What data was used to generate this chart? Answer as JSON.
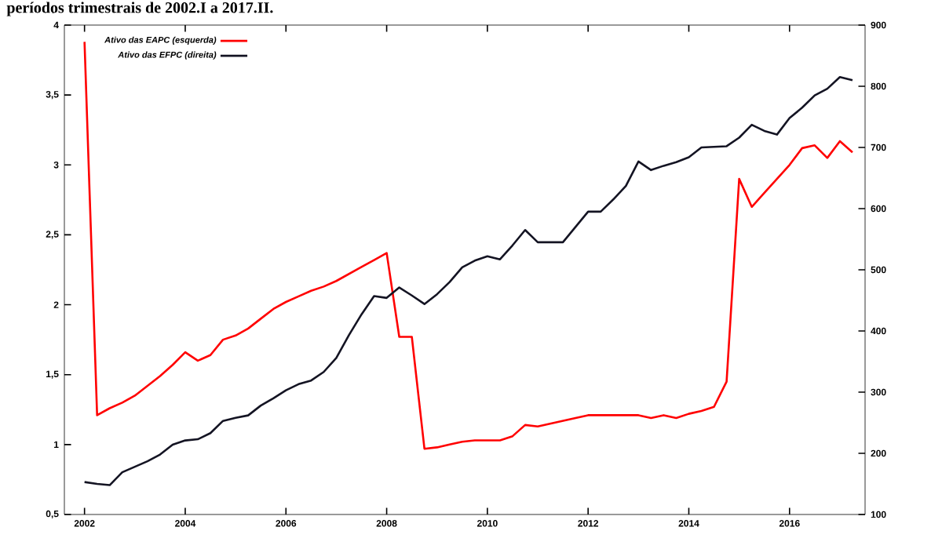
{
  "chart_data": {
    "type": "line",
    "title": "períodos trimestrais de 2002.I a 2017.II.",
    "x": [
      2002,
      2002.25,
      2002.5,
      2002.75,
      2003,
      2003.25,
      2003.5,
      2003.75,
      2004,
      2004.25,
      2004.5,
      2004.75,
      2005,
      2005.25,
      2005.5,
      2005.75,
      2006,
      2006.25,
      2006.5,
      2006.75,
      2007,
      2007.25,
      2007.5,
      2007.75,
      2008,
      2008.25,
      2008.5,
      2008.75,
      2009,
      2009.25,
      2009.5,
      2009.75,
      2010,
      2010.25,
      2010.5,
      2010.75,
      2011,
      2011.25,
      2011.5,
      2011.75,
      2012,
      2012.25,
      2012.5,
      2012.75,
      2013,
      2013.25,
      2013.5,
      2013.75,
      2014,
      2014.25,
      2014.5,
      2014.75,
      2015,
      2015.25,
      2015.5,
      2015.75,
      2016,
      2016.25,
      2016.5,
      2016.75,
      2017,
      2017.25
    ],
    "series": [
      {
        "name": "Ativo das EAPC (esquerda)",
        "color": "#ff0000",
        "axis": "y",
        "values": [
          3.88,
          1.21,
          1.26,
          1.3,
          1.35,
          1.42,
          1.49,
          1.57,
          1.66,
          1.6,
          1.64,
          1.75,
          1.78,
          1.83,
          1.9,
          1.97,
          2.02,
          2.06,
          2.1,
          2.13,
          2.17,
          2.22,
          2.27,
          2.32,
          2.37,
          1.77,
          1.77,
          0.97,
          0.98,
          1.0,
          1.02,
          1.03,
          1.03,
          1.03,
          1.06,
          1.14,
          1.13,
          1.15,
          1.17,
          1.19,
          1.21,
          1.21,
          1.21,
          1.21,
          1.21,
          1.19,
          1.21,
          1.19,
          1.22,
          1.24,
          1.27,
          1.45,
          2.9,
          2.7,
          2.8,
          2.9,
          3.0,
          3.12,
          3.14,
          3.05,
          3.17,
          3.09
        ]
      },
      {
        "name": "Ativo das EFPC (direita)",
        "color": "#141423",
        "axis": "y2",
        "values": [
          153,
          150,
          148,
          169,
          178,
          187,
          198,
          214,
          221,
          223,
          233,
          253,
          258,
          262,
          278,
          290,
          303,
          313,
          319,
          333,
          356,
          393,
          427,
          457,
          454,
          471,
          458,
          444,
          460,
          480,
          504,
          515,
          522,
          517,
          540,
          565,
          545,
          545,
          545,
          570,
          595,
          595,
          615,
          637,
          677,
          663,
          670,
          676,
          684,
          700,
          701,
          702,
          716,
          737,
          727,
          721,
          748,
          765,
          785,
          796,
          815,
          810
        ]
      }
    ],
    "xlim": [
      2001.6,
      2017.5
    ],
    "xticks": [
      2002,
      2004,
      2006,
      2008,
      2010,
      2012,
      2014,
      2016
    ],
    "ylim": [
      0.5,
      4
    ],
    "yticks": [
      {
        "value": 0.5,
        "label": "0,5"
      },
      1,
      {
        "value": 1.5,
        "label": "1,5"
      },
      2,
      {
        "value": 2.5,
        "label": "2,5"
      },
      3,
      {
        "value": 3.5,
        "label": "3,5"
      },
      4
    ],
    "y2lim": [
      100,
      900
    ],
    "y2ticks": [
      100,
      200,
      300,
      400,
      500,
      600,
      700,
      800,
      900
    ],
    "legend": "top left"
  }
}
